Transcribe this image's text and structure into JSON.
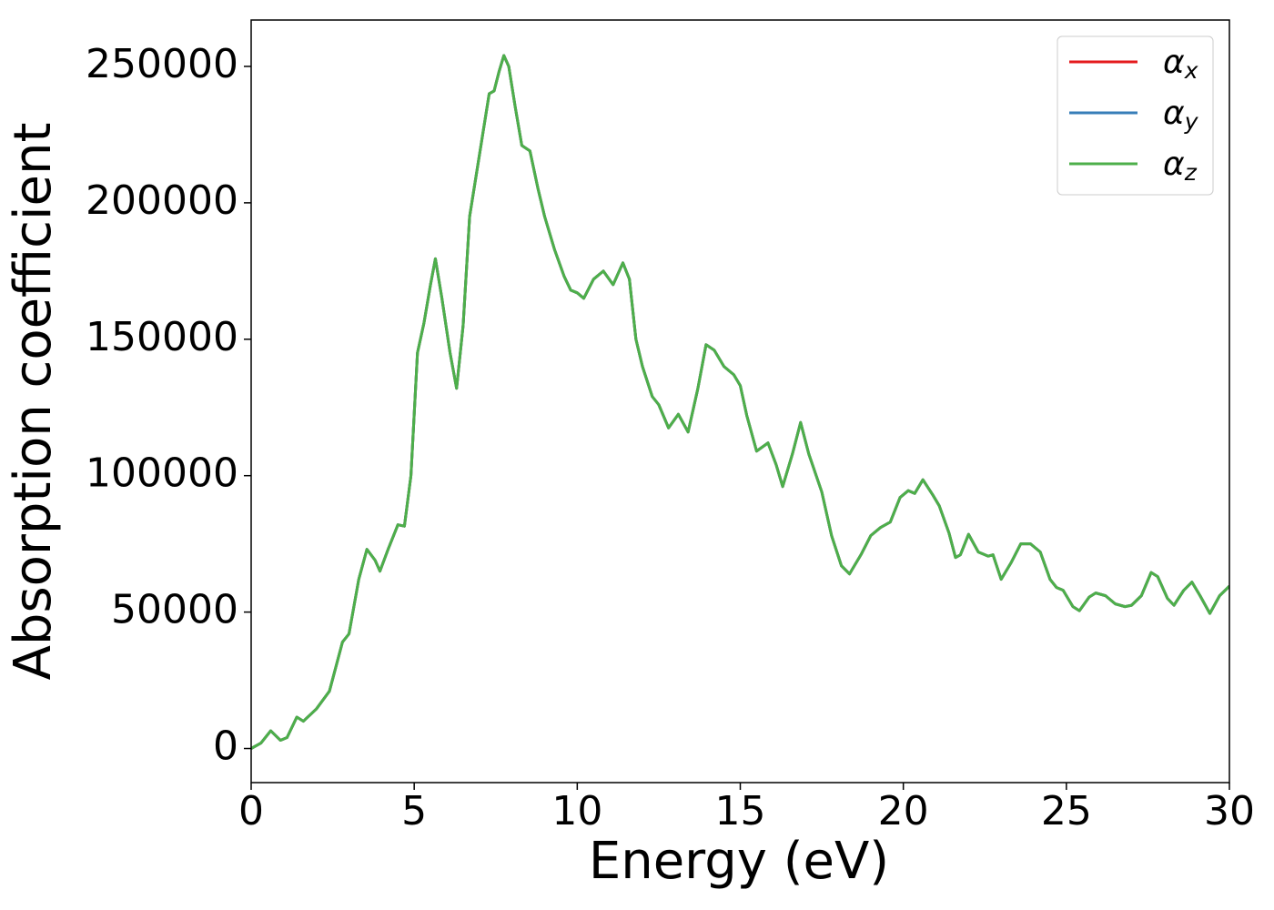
{
  "chart_data": {
    "type": "line",
    "xlabel": "Energy (eV)",
    "ylabel": "Absorption coefficient",
    "x": [
      0,
      0.3,
      0.6,
      0.9,
      1.1,
      1.4,
      1.6,
      2.0,
      2.4,
      2.6,
      2.8,
      3.0,
      3.3,
      3.55,
      3.8,
      3.95,
      4.2,
      4.5,
      4.7,
      4.9,
      5.1,
      5.3,
      5.5,
      5.65,
      5.85,
      6.1,
      6.3,
      6.5,
      6.7,
      6.9,
      7.1,
      7.3,
      7.45,
      7.6,
      7.75,
      7.9,
      8.1,
      8.3,
      8.55,
      8.8,
      9.0,
      9.3,
      9.6,
      9.8,
      10.0,
      10.2,
      10.5,
      10.8,
      11.1,
      11.4,
      11.6,
      11.8,
      12.0,
      12.3,
      12.5,
      12.8,
      13.1,
      13.4,
      13.7,
      13.95,
      14.2,
      14.5,
      14.8,
      15.0,
      15.2,
      15.5,
      15.85,
      16.1,
      16.3,
      16.6,
      16.85,
      17.1,
      17.5,
      17.8,
      18.1,
      18.35,
      18.7,
      19.0,
      19.3,
      19.6,
      19.9,
      20.15,
      20.35,
      20.6,
      20.9,
      21.1,
      21.4,
      21.6,
      21.75,
      22.0,
      22.3,
      22.6,
      22.75,
      23.0,
      23.3,
      23.6,
      23.9,
      24.2,
      24.5,
      24.7,
      24.9,
      25.2,
      25.4,
      25.7,
      25.9,
      26.2,
      26.5,
      26.8,
      27.0,
      27.3,
      27.6,
      27.8,
      28.1,
      28.3,
      28.6,
      28.85,
      29.1,
      29.4,
      29.7,
      30.0
    ],
    "series": [
      {
        "name": "αx",
        "color": "#e41a1c",
        "values": [
          0,
          2000,
          6500,
          3000,
          4000,
          11500,
          10000,
          14500,
          21000,
          30000,
          39000,
          42000,
          62000,
          73000,
          69000,
          65000,
          73000,
          82000,
          81500,
          100000,
          145000,
          156000,
          170000,
          179500,
          165000,
          145000,
          132000,
          155000,
          195000,
          210000,
          225000,
          240000,
          241000,
          248000,
          254000,
          250000,
          235000,
          221000,
          219000,
          205000,
          195000,
          183000,
          173000,
          168000,
          167000,
          165000,
          172000,
          175000,
          170000,
          178000,
          172000,
          150000,
          140000,
          129000,
          126000,
          117500,
          122500,
          116000,
          132000,
          148000,
          146000,
          140000,
          137000,
          133000,
          122000,
          109000,
          112000,
          104000,
          96000,
          108000,
          119500,
          108000,
          94000,
          78000,
          67000,
          64000,
          71000,
          78000,
          81000,
          83000,
          92000,
          94500,
          93500,
          98500,
          93000,
          89000,
          79000,
          70000,
          71000,
          78500,
          72000,
          70500,
          71000,
          62000,
          68000,
          75000,
          75000,
          72000,
          62000,
          59000,
          58000,
          52000,
          50500,
          55500,
          57000,
          56000,
          53000,
          52000,
          52500,
          56000,
          64500,
          63000,
          55000,
          52500,
          58000,
          61000,
          56000,
          49500,
          56000,
          59500
        ]
      },
      {
        "name": "αy",
        "color": "#377eb8",
        "values": [
          0,
          2000,
          6500,
          3000,
          4000,
          11500,
          10000,
          14500,
          21000,
          30000,
          39000,
          42000,
          62000,
          73000,
          69000,
          65000,
          73000,
          82000,
          81500,
          100000,
          145000,
          156000,
          170000,
          179500,
          165000,
          145000,
          132000,
          155000,
          195000,
          210000,
          225000,
          240000,
          241000,
          248000,
          254000,
          250000,
          235000,
          221000,
          219000,
          205000,
          195000,
          183000,
          173000,
          168000,
          167000,
          165000,
          172000,
          175000,
          170000,
          178000,
          172000,
          150000,
          140000,
          129000,
          126000,
          117500,
          122500,
          116000,
          132000,
          148000,
          146000,
          140000,
          137000,
          133000,
          122000,
          109000,
          112000,
          104000,
          96000,
          108000,
          119500,
          108000,
          94000,
          78000,
          67000,
          64000,
          71000,
          78000,
          81000,
          83000,
          92000,
          94500,
          93500,
          98500,
          93000,
          89000,
          79000,
          70000,
          71000,
          78500,
          72000,
          70500,
          71000,
          62000,
          68000,
          75000,
          75000,
          72000,
          62000,
          59000,
          58000,
          52000,
          50500,
          55500,
          57000,
          56000,
          53000,
          52000,
          52500,
          56000,
          64500,
          63000,
          55000,
          52500,
          58000,
          61000,
          56000,
          49500,
          56000,
          59500
        ]
      },
      {
        "name": "αz",
        "color": "#4daf4a",
        "values": [
          0,
          2000,
          6500,
          3000,
          4000,
          11500,
          10000,
          14500,
          21000,
          30000,
          39000,
          42000,
          62000,
          73000,
          69000,
          65000,
          73000,
          82000,
          81500,
          100000,
          145000,
          156000,
          170000,
          179500,
          165000,
          145000,
          132000,
          155000,
          195000,
          210000,
          225000,
          240000,
          241000,
          248000,
          254000,
          250000,
          235000,
          221000,
          219000,
          205000,
          195000,
          183000,
          173000,
          168000,
          167000,
          165000,
          172000,
          175000,
          170000,
          178000,
          172000,
          150000,
          140000,
          129000,
          126000,
          117500,
          122500,
          116000,
          132000,
          148000,
          146000,
          140000,
          137000,
          133000,
          122000,
          109000,
          112000,
          104000,
          96000,
          108000,
          119500,
          108000,
          94000,
          78000,
          67000,
          64000,
          71000,
          78000,
          81000,
          83000,
          92000,
          94500,
          93500,
          98500,
          93000,
          89000,
          79000,
          70000,
          71000,
          78500,
          72000,
          70500,
          71000,
          62000,
          68000,
          75000,
          75000,
          72000,
          62000,
          59000,
          58000,
          52000,
          50500,
          55500,
          57000,
          56000,
          53000,
          52000,
          52500,
          56000,
          64500,
          63000,
          55000,
          52500,
          58000,
          61000,
          56000,
          49500,
          56000,
          59500
        ]
      }
    ],
    "xlim": [
      0,
      30
    ],
    "xticks": [
      0,
      5,
      10,
      15,
      20,
      25,
      30
    ],
    "ylim": [
      -12500,
      267000
    ],
    "yticks": [
      0,
      50000,
      100000,
      150000,
      200000,
      250000
    ],
    "legend": "upper right",
    "grid": false
  }
}
